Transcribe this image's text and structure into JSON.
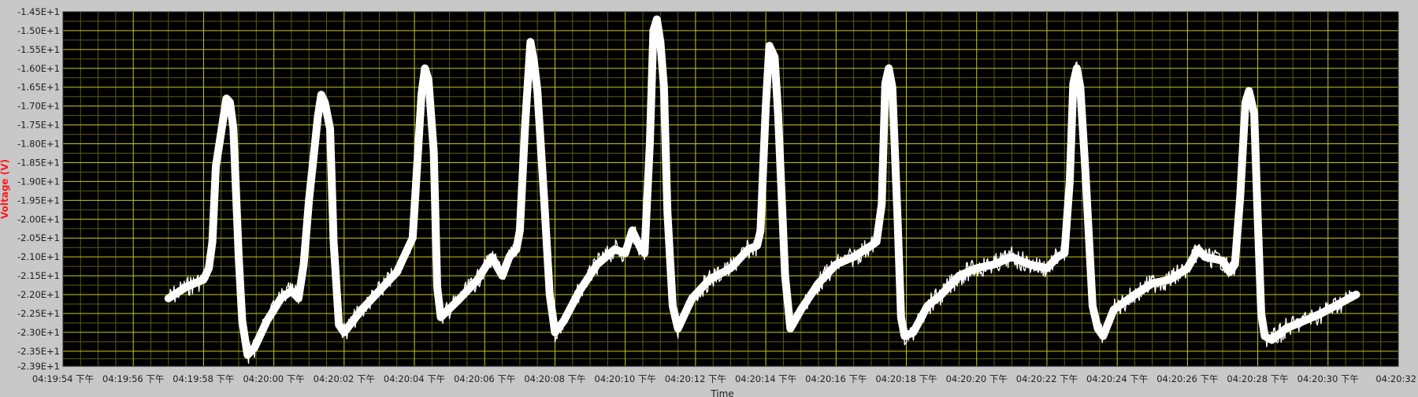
{
  "colors": {
    "frame_background": "#c8c8c8",
    "plot_background": "#000000",
    "major_grid": "#c8c81e",
    "minor_grid": "#5a5a14",
    "trace": "#ffffff",
    "y_axis_title": "#ff1a1a"
  },
  "chart_data": {
    "type": "line",
    "title": "",
    "xlabel": "Time",
    "ylabel": "Voltage (V)",
    "grid": true,
    "ylim": [
      -23.9,
      -14.5
    ],
    "xlim": [
      "04:19:54",
      "04:20:32"
    ],
    "y_ticks": [
      "-1.45E+1",
      "-1.50E+1",
      "-1.55E+1",
      "-1.60E+1",
      "-1.65E+1",
      "-1.70E+1",
      "-1.75E+1",
      "-1.80E+1",
      "-1.85E+1",
      "-1.90E+1",
      "-1.95E+1",
      "-2.00E+1",
      "-2.05E+1",
      "-2.10E+1",
      "-2.15E+1",
      "-2.20E+1",
      "-2.25E+1",
      "-2.30E+1",
      "-2.35E+1",
      "-2.39E+1"
    ],
    "y_tick_values": [
      -14.5,
      -15.0,
      -15.5,
      -16.0,
      -16.5,
      -17.0,
      -17.5,
      -18.0,
      -18.5,
      -19.0,
      -19.5,
      -20.0,
      -20.5,
      -21.0,
      -21.5,
      -22.0,
      -22.5,
      -23.0,
      -23.5,
      -23.9
    ],
    "x_ticks": [
      "04:19:54 下午",
      "04:19:56 下午",
      "04:19:58 下午",
      "04:20:00 下午",
      "04:20:02 下午",
      "04:20:04 下午",
      "04:20:06 下午",
      "04:20:08 下午",
      "04:20:10 下午",
      "04:20:12 下午",
      "04:20:14 下午",
      "04:20:16 下午",
      "04:20:18 下午",
      "04:20:20 下午",
      "04:20:22 下午",
      "04:20:24 下午",
      "04:20:26 下午",
      "04:20:28 下午",
      "04:20:30 下午",
      "04:20:32"
    ],
    "x_tick_values": [
      0,
      2,
      4,
      6,
      8,
      10,
      12,
      14,
      16,
      18,
      20,
      22,
      24,
      26,
      28,
      30,
      32,
      34,
      36,
      38
    ],
    "series": [
      {
        "color": "#ffffff",
        "points": [
          [
            3.0,
            -22.1
          ],
          [
            3.5,
            -21.8
          ],
          [
            4.0,
            -21.6
          ],
          [
            4.15,
            -21.3
          ],
          [
            4.25,
            -20.6
          ],
          [
            4.35,
            -18.6
          ],
          [
            4.5,
            -17.7
          ],
          [
            4.65,
            -16.8
          ],
          [
            4.75,
            -16.9
          ],
          [
            4.85,
            -17.6
          ],
          [
            5.0,
            -21.0
          ],
          [
            5.1,
            -22.7
          ],
          [
            5.25,
            -23.6
          ],
          [
            5.45,
            -23.4
          ],
          [
            5.8,
            -22.7
          ],
          [
            6.2,
            -22.1
          ],
          [
            6.5,
            -21.9
          ],
          [
            6.7,
            -22.1
          ],
          [
            6.85,
            -21.2
          ],
          [
            7.0,
            -19.5
          ],
          [
            7.25,
            -17.3
          ],
          [
            7.35,
            -16.7
          ],
          [
            7.45,
            -16.9
          ],
          [
            7.6,
            -17.6
          ],
          [
            7.7,
            -20.6
          ],
          [
            7.85,
            -22.8
          ],
          [
            8.0,
            -23.0
          ],
          [
            8.5,
            -22.4
          ],
          [
            9.0,
            -21.9
          ],
          [
            9.5,
            -21.4
          ],
          [
            9.8,
            -20.8
          ],
          [
            9.95,
            -20.5
          ],
          [
            10.05,
            -19.0
          ],
          [
            10.2,
            -16.7
          ],
          [
            10.3,
            -16.0
          ],
          [
            10.4,
            -16.3
          ],
          [
            10.55,
            -18.2
          ],
          [
            10.65,
            -21.8
          ],
          [
            10.75,
            -22.6
          ],
          [
            11.3,
            -22.1
          ],
          [
            11.8,
            -21.6
          ],
          [
            12.2,
            -21.0
          ],
          [
            12.5,
            -21.5
          ],
          [
            12.7,
            -21.0
          ],
          [
            12.9,
            -20.8
          ],
          [
            13.0,
            -20.3
          ],
          [
            13.15,
            -17.5
          ],
          [
            13.3,
            -15.3
          ],
          [
            13.4,
            -15.8
          ],
          [
            13.5,
            -16.6
          ],
          [
            13.7,
            -19.6
          ],
          [
            13.85,
            -22.0
          ],
          [
            14.0,
            -23.0
          ],
          [
            14.25,
            -22.7
          ],
          [
            14.7,
            -21.9
          ],
          [
            15.2,
            -21.2
          ],
          [
            15.7,
            -20.8
          ],
          [
            16.0,
            -20.9
          ],
          [
            16.2,
            -20.3
          ],
          [
            16.45,
            -20.8
          ],
          [
            16.55,
            -20.9
          ],
          [
            16.7,
            -18.0
          ],
          [
            16.8,
            -15.0
          ],
          [
            16.9,
            -14.7
          ],
          [
            17.0,
            -15.3
          ],
          [
            17.1,
            -16.5
          ],
          [
            17.2,
            -19.8
          ],
          [
            17.35,
            -22.3
          ],
          [
            17.5,
            -22.9
          ],
          [
            17.9,
            -22.1
          ],
          [
            18.4,
            -21.6
          ],
          [
            19.0,
            -21.3
          ],
          [
            19.5,
            -20.8
          ],
          [
            19.75,
            -20.7
          ],
          [
            19.85,
            -20.3
          ],
          [
            20.0,
            -17.0
          ],
          [
            20.1,
            -15.4
          ],
          [
            20.25,
            -15.7
          ],
          [
            20.35,
            -17.2
          ],
          [
            20.55,
            -21.5
          ],
          [
            20.7,
            -22.9
          ],
          [
            21.0,
            -22.4
          ],
          [
            21.5,
            -21.7
          ],
          [
            22.0,
            -21.2
          ],
          [
            22.5,
            -21.0
          ],
          [
            23.0,
            -20.7
          ],
          [
            23.15,
            -20.6
          ],
          [
            23.3,
            -19.6
          ],
          [
            23.4,
            -16.4
          ],
          [
            23.5,
            -16.0
          ],
          [
            23.6,
            -16.5
          ],
          [
            23.75,
            -20.0
          ],
          [
            23.85,
            -22.6
          ],
          [
            23.95,
            -23.1
          ],
          [
            24.2,
            -23.0
          ],
          [
            24.6,
            -22.3
          ],
          [
            25.0,
            -22.0
          ],
          [
            25.5,
            -21.5
          ],
          [
            26.0,
            -21.3
          ],
          [
            26.5,
            -21.2
          ],
          [
            27.0,
            -21.0
          ],
          [
            27.5,
            -21.2
          ],
          [
            28.0,
            -21.3
          ],
          [
            28.3,
            -21.0
          ],
          [
            28.5,
            -20.9
          ],
          [
            28.65,
            -19.0
          ],
          [
            28.75,
            -16.4
          ],
          [
            28.85,
            -16.0
          ],
          [
            28.95,
            -16.5
          ],
          [
            29.1,
            -18.8
          ],
          [
            29.3,
            -22.3
          ],
          [
            29.45,
            -22.9
          ],
          [
            29.6,
            -23.1
          ],
          [
            29.9,
            -22.4
          ],
          [
            30.5,
            -22.0
          ],
          [
            31.0,
            -21.7
          ],
          [
            31.5,
            -21.6
          ],
          [
            32.0,
            -21.3
          ],
          [
            32.3,
            -20.8
          ],
          [
            32.5,
            -21.0
          ],
          [
            33.0,
            -21.1
          ],
          [
            33.2,
            -21.4
          ],
          [
            33.35,
            -21.2
          ],
          [
            33.5,
            -19.4
          ],
          [
            33.65,
            -16.9
          ],
          [
            33.75,
            -16.6
          ],
          [
            33.9,
            -17.2
          ],
          [
            34.0,
            -20.0
          ],
          [
            34.1,
            -22.5
          ],
          [
            34.2,
            -23.1
          ],
          [
            34.4,
            -23.2
          ],
          [
            34.8,
            -22.9
          ],
          [
            35.3,
            -22.7
          ],
          [
            35.8,
            -22.5
          ],
          [
            36.4,
            -22.2
          ],
          [
            36.8,
            -22.0
          ]
        ]
      }
    ]
  }
}
